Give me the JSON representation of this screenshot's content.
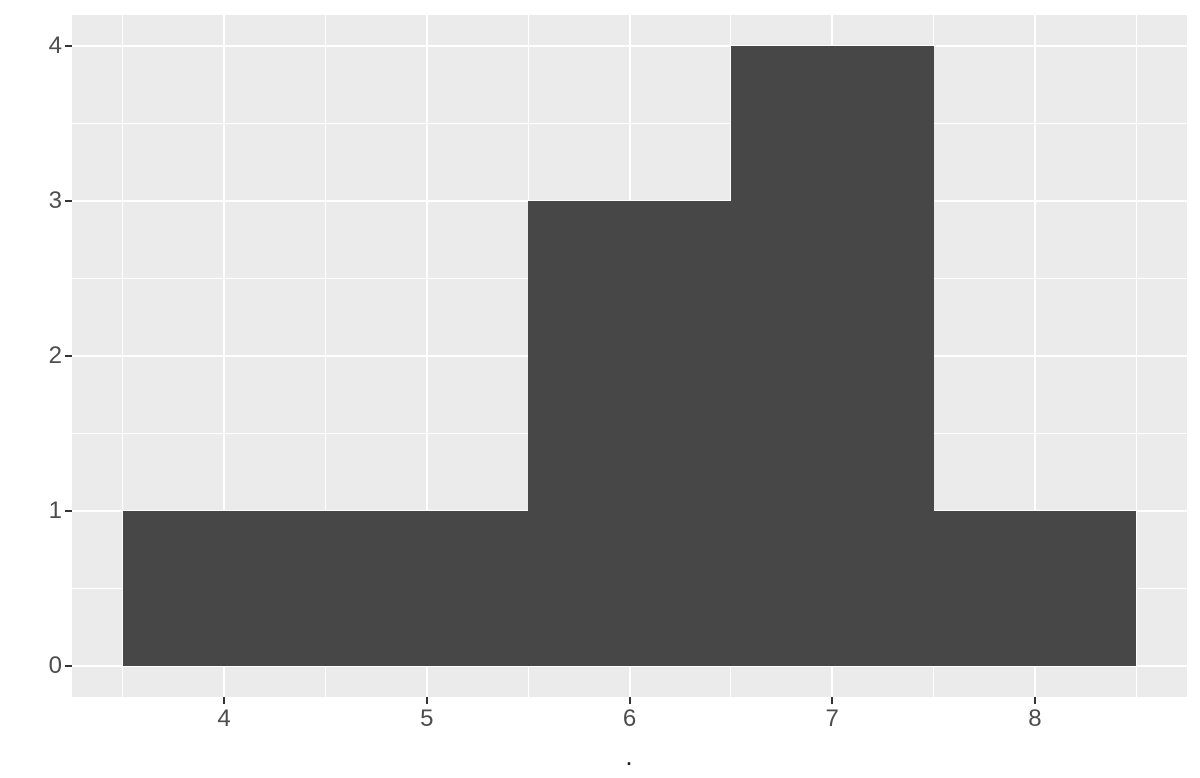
{
  "chart_data": {
    "type": "histogram",
    "title": "",
    "xlabel": ".",
    "ylabel": "",
    "bin_edges": [
      3.5,
      4.5,
      5.5,
      6.5,
      7.5,
      8.5
    ],
    "bin_centers": [
      4,
      5,
      6,
      7,
      8
    ],
    "counts": [
      1,
      1,
      3,
      4,
      1
    ],
    "x_ticks": [
      4,
      5,
      6,
      7,
      8
    ],
    "x_tick_labels": [
      "4",
      "5",
      "6",
      "7",
      "8"
    ],
    "y_ticks": [
      0,
      1,
      2,
      3,
      4
    ],
    "y_tick_labels": [
      "0",
      "1",
      "2",
      "3",
      "4"
    ],
    "x_minor_gridlines": [
      3.5,
      4.5,
      5.5,
      6.5,
      7.5,
      8.5
    ],
    "y_minor_gridlines": [
      0.5,
      1.5,
      2.5,
      3.5
    ],
    "xlim": [
      3.25,
      8.75
    ],
    "ylim": [
      -0.2,
      4.2
    ],
    "grid": true,
    "legend_position": "none"
  },
  "style": {
    "page_bg": "#FFFFFF",
    "panel_bg": "#EBEBEB",
    "grid_color": "#FFFFFF",
    "bar_fill": "#474747",
    "tick_mark_color": "#333333",
    "tick_label_color": "#4D4D4D"
  }
}
